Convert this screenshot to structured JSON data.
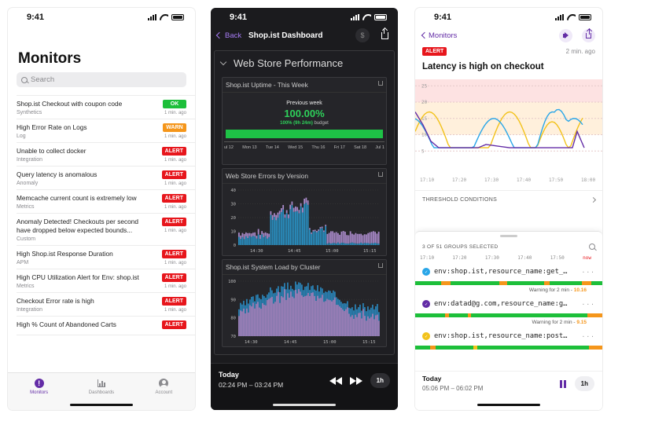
{
  "phone1": {
    "time": "9:41",
    "title": "Monitors",
    "search_placeholder": "Search",
    "monitors": [
      {
        "name": "Shop.ist Checkout with coupon code",
        "category": "Synthetics",
        "status": "OK",
        "ago": "1 min. ago"
      },
      {
        "name": "High Error Rate on Logs",
        "category": "Log",
        "status": "WARN",
        "ago": "1 min. ago"
      },
      {
        "name": "Unable to collect docker",
        "category": "Integration",
        "status": "ALERT",
        "ago": "1 min. ago"
      },
      {
        "name": "Query latency is anomalous",
        "category": "Anomaly",
        "status": "ALERT",
        "ago": "1 min. ago"
      },
      {
        "name": "Memcache current count is extremely low",
        "category": "Metrics",
        "status": "ALERT",
        "ago": "1 min. ago"
      },
      {
        "name": "Anomaly Detected! Checkouts per second have dropped below expected bounds...",
        "category": "Custom",
        "status": "ALERT",
        "ago": "1 min. ago"
      },
      {
        "name": "High Shop.ist Response Duration",
        "category": "APM",
        "status": "ALERT",
        "ago": "1 min. ago"
      },
      {
        "name": "High CPU Utilization Alert for Env: shop.ist",
        "category": "Metrics",
        "status": "ALERT",
        "ago": "1 min. ago"
      },
      {
        "name": "Checkout Error rate is high",
        "category": "Integration",
        "status": "ALERT",
        "ago": "1 min. ago"
      },
      {
        "name": "High % Count of Abandoned Carts",
        "category": "",
        "status": "ALERT",
        "ago": ""
      }
    ],
    "tabs": {
      "monitors": "Monitors",
      "dashboards": "Dashboards",
      "account": "Account"
    }
  },
  "phone2": {
    "time": "9:41",
    "back_label": "Back",
    "title": "Shop.ist Dashboard",
    "group_title": "Web Store Performance",
    "uptime_widget": {
      "title": "Shop.ist Uptime - This Week",
      "period_label": "Previous week",
      "percent": "100.00%",
      "budget_value": "100% (9h 24m)",
      "budget_label": "budget",
      "days": [
        "ul 12",
        "Mon 13",
        "Tue 14",
        "Wed 15",
        "Thu 16",
        "Fri 17",
        "Sat 18",
        "Jul 1"
      ]
    },
    "errors_widget": {
      "title": "Web Store Errors by Version",
      "y_ticks": [
        "40",
        "30",
        "20",
        "10",
        "0"
      ],
      "x_ticks": [
        "14:30",
        "14:45",
        "15:00",
        "15:15"
      ]
    },
    "load_widget": {
      "title": "Shop.ist System Load by Cluster",
      "y_ticks": [
        "100",
        "90",
        "80",
        "70"
      ],
      "x_ticks": [
        "14:30",
        "14:45",
        "15:00",
        "15:15"
      ]
    },
    "footer": {
      "today": "Today",
      "range": "02:24 PM – 03:24 PM",
      "interval": "1h"
    }
  },
  "phone3": {
    "time": "9:41",
    "back_label": "Monitors",
    "status": "ALERT",
    "ago": "2 min. ago",
    "headline": "Latency is high on checkout",
    "chart": {
      "y_ticks": [
        "25",
        "20",
        "15",
        "10",
        "5"
      ],
      "x_ticks": [
        "17:10",
        "17:20",
        "17:30",
        "17:40",
        "17:50",
        "18:00"
      ]
    },
    "threshold_label": "THRESHOLD CONDITIONS",
    "groups_selected": "3 OF 51 GROUPS SELECTED",
    "timeline_ticks": [
      "17:10",
      "17:20",
      "17:30",
      "17:40",
      "17:50",
      "now"
    ],
    "groups": [
      {
        "name": "env:shop.ist,resource_name:get_…",
        "color": "#29a6e8",
        "warn_label": "Warning for 2 min -",
        "warn_value": "10.16"
      },
      {
        "name": "env:datad@g.com,resource_name:g…",
        "color": "#632ca6",
        "warn_label": "Warning for 2 min -",
        "warn_value": "9.15"
      },
      {
        "name": "env:shop.ist,resource_name:post…",
        "color": "#f2c21b",
        "warn_label": "",
        "warn_value": ""
      }
    ],
    "footer": {
      "today": "Today",
      "range": "05:06 PM – 06:02 PM",
      "interval": "1h"
    }
  },
  "colors": {
    "ok": "#1dbf3a",
    "warn": "#f5961b",
    "alert": "#e7161c",
    "brand": "#632ca6"
  }
}
